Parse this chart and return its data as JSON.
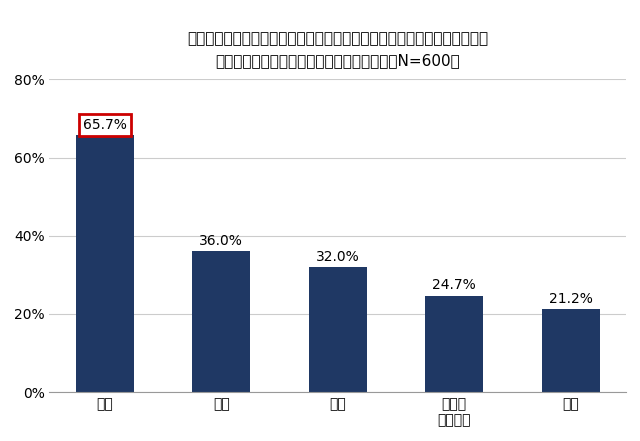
{
  "title_line1": "今後、もしあなたがストーカー行為の被害に遭った（遭いそうになった）",
  "title_line2": "としたら、誰に相談しますか　（複数回答、N=600）",
  "categories": [
    "警察",
    "母親",
    "友人",
    "公的な\n相談窓口",
    "父親"
  ],
  "values": [
    65.7,
    36.0,
    32.0,
    24.7,
    21.2
  ],
  "labels": [
    "65.7%",
    "36.0%",
    "32.0%",
    "24.7%",
    "21.2%"
  ],
  "bar_color": "#1F3864",
  "highlight_index": 0,
  "highlight_box_color": "#CC0000",
  "ylim": [
    0,
    80
  ],
  "yticks": [
    0,
    20,
    40,
    60,
    80
  ],
  "ytick_labels": [
    "0%",
    "20%",
    "40%",
    "60%",
    "80%"
  ],
  "background_color": "#FFFFFF",
  "grid_color": "#CCCCCC",
  "title_fontsize": 11,
  "label_fontsize": 10,
  "tick_fontsize": 10
}
